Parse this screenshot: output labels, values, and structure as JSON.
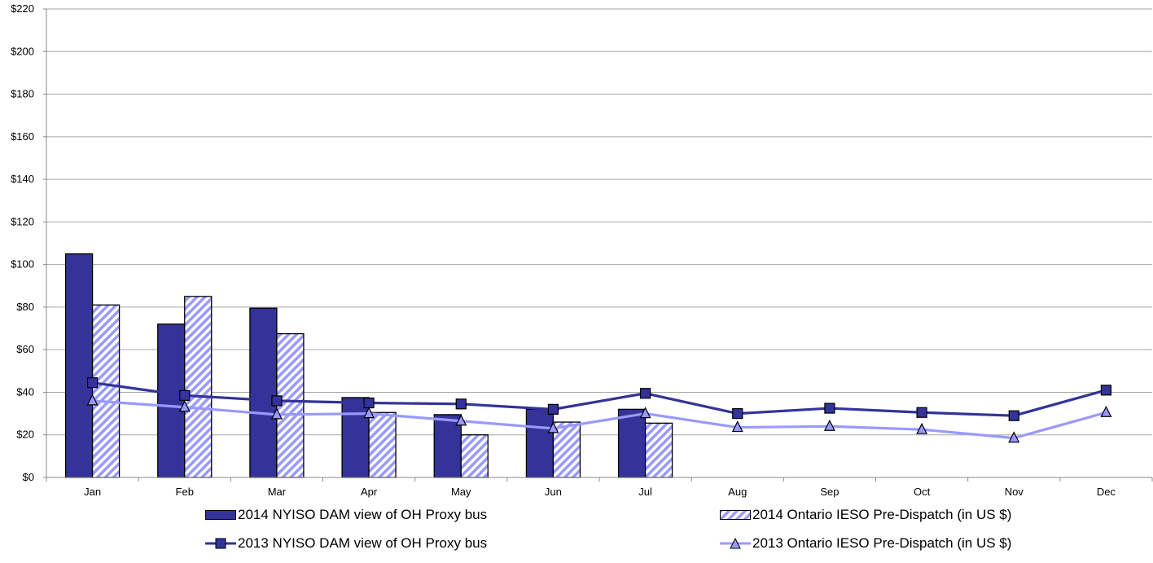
{
  "chart_data": {
    "type": "bar",
    "categories": [
      "Jan",
      "Feb",
      "Mar",
      "Apr",
      "May",
      "Jun",
      "Jul",
      "Aug",
      "Sep",
      "Oct",
      "Nov",
      "Dec"
    ],
    "y_ticks": [
      "$0",
      "$20",
      "$40",
      "$60",
      "$80",
      "$100",
      "$120",
      "$140",
      "$160",
      "$180",
      "$200",
      "$220"
    ],
    "ylim": [
      0,
      220
    ],
    "grid": true,
    "legend_position": "bottom",
    "bar_series": [
      {
        "name": "2014 NYISO DAM view of OH Proxy bus",
        "color": "#333399",
        "pattern": "solid",
        "values": [
          105,
          72,
          79.5,
          37.5,
          29.5,
          32,
          32,
          null,
          null,
          null,
          null,
          null
        ]
      },
      {
        "name": "2014 Ontario IESO Pre-Dispatch (in US $)",
        "color": "#9999ff",
        "pattern": "diagonal-stripes",
        "values": [
          81,
          85,
          67.5,
          30.5,
          20,
          26,
          25.5,
          null,
          null,
          null,
          null,
          null
        ]
      }
    ],
    "line_series": [
      {
        "name": "2013 NYISO DAM view of OH Proxy bus",
        "color": "#333399",
        "marker": "square",
        "values": [
          44.5,
          38.5,
          36,
          35,
          34.5,
          32,
          39.5,
          30,
          32.5,
          30.5,
          29,
          41
        ]
      },
      {
        "name": "2013 Ontario IESO Pre-Dispatch (in US $)",
        "color": "#9999ff",
        "marker": "triangle",
        "values": [
          36,
          33,
          29.5,
          30,
          26.5,
          23,
          30,
          23.5,
          24,
          22.5,
          18.5,
          30.5
        ]
      }
    ]
  },
  "legend": {
    "bar1": "2014 NYISO DAM view of OH Proxy bus",
    "bar2": "2014 Ontario IESO Pre-Dispatch (in US $)",
    "line1": "2013 NYISO DAM view of OH Proxy bus",
    "line2": "2013 Ontario IESO Pre-Dispatch (in US $)"
  }
}
